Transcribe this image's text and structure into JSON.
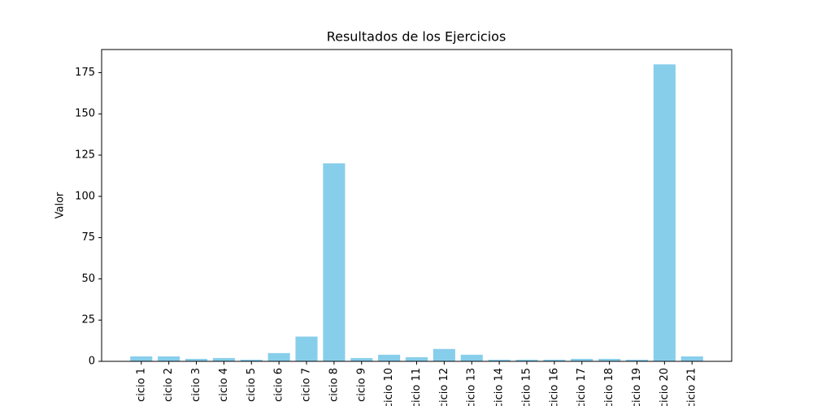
{
  "chart_data": {
    "type": "bar",
    "title": "Resultados de los Ejercicios",
    "y_label": "Valor",
    "categories": [
      "cicio 1",
      "cicio 2",
      "cicio 3",
      "cicio 4",
      "cicio 5",
      "cicio 6",
      "cicio 7",
      "cicio 8",
      "cicio 9",
      "cicio 10",
      "cicio 11",
      "cicio 12",
      "cicio 13",
      "cicio 14",
      "cicio 15",
      "cicio 16",
      "cicio 17",
      "cicio 18",
      "cicio 19",
      "cicio 20",
      "cicio 21"
    ],
    "values": [
      3,
      3,
      1.5,
      2,
      1,
      5,
      15,
      120,
      2,
      4,
      2.5,
      7.5,
      4,
      1,
      1,
      1,
      1.5,
      1.5,
      1,
      180,
      3
    ],
    "color": "#87ceeb",
    "ylim": [
      0,
      189
    ],
    "yticks": [
      0,
      25,
      50,
      75,
      100,
      125,
      150,
      175
    ],
    "grid": false
  }
}
